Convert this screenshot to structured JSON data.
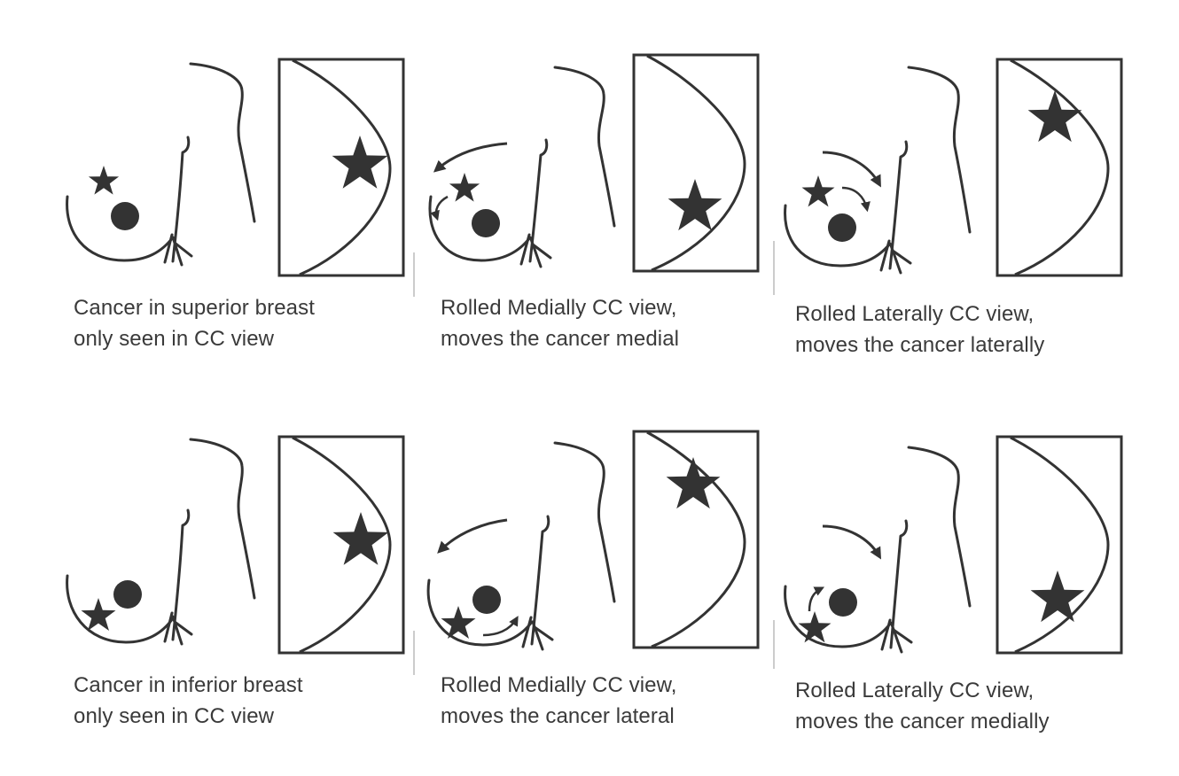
{
  "colors": {
    "ink": "#333333",
    "text": "#3a3a3a",
    "divider": "#bbbbbb",
    "background": "#ffffff"
  },
  "panels": [
    {
      "id": "superior-only-cc",
      "caption": [
        "Cancer in superior breast",
        "only seen in CC view"
      ]
    },
    {
      "id": "superior-rolled-medially",
      "caption": [
        "Rolled Medially CC view,",
        "moves the cancer medial"
      ]
    },
    {
      "id": "superior-rolled-laterally",
      "caption": [
        "Rolled Laterally CC view,",
        "moves the cancer laterally"
      ]
    },
    {
      "id": "inferior-only-cc",
      "caption": [
        "Cancer in inferior breast",
        "only seen in CC view"
      ]
    },
    {
      "id": "inferior-rolled-medially",
      "caption": [
        "Rolled Medially CC view,",
        "moves the cancer lateral"
      ]
    },
    {
      "id": "inferior-rolled-laterally",
      "caption": [
        "Rolled Laterally CC view,",
        "moves the cancer medially"
      ]
    }
  ],
  "icons": {
    "cancer": "star-icon",
    "nipple-marker": "circle-icon",
    "roll-direction": "arrow-icon"
  }
}
